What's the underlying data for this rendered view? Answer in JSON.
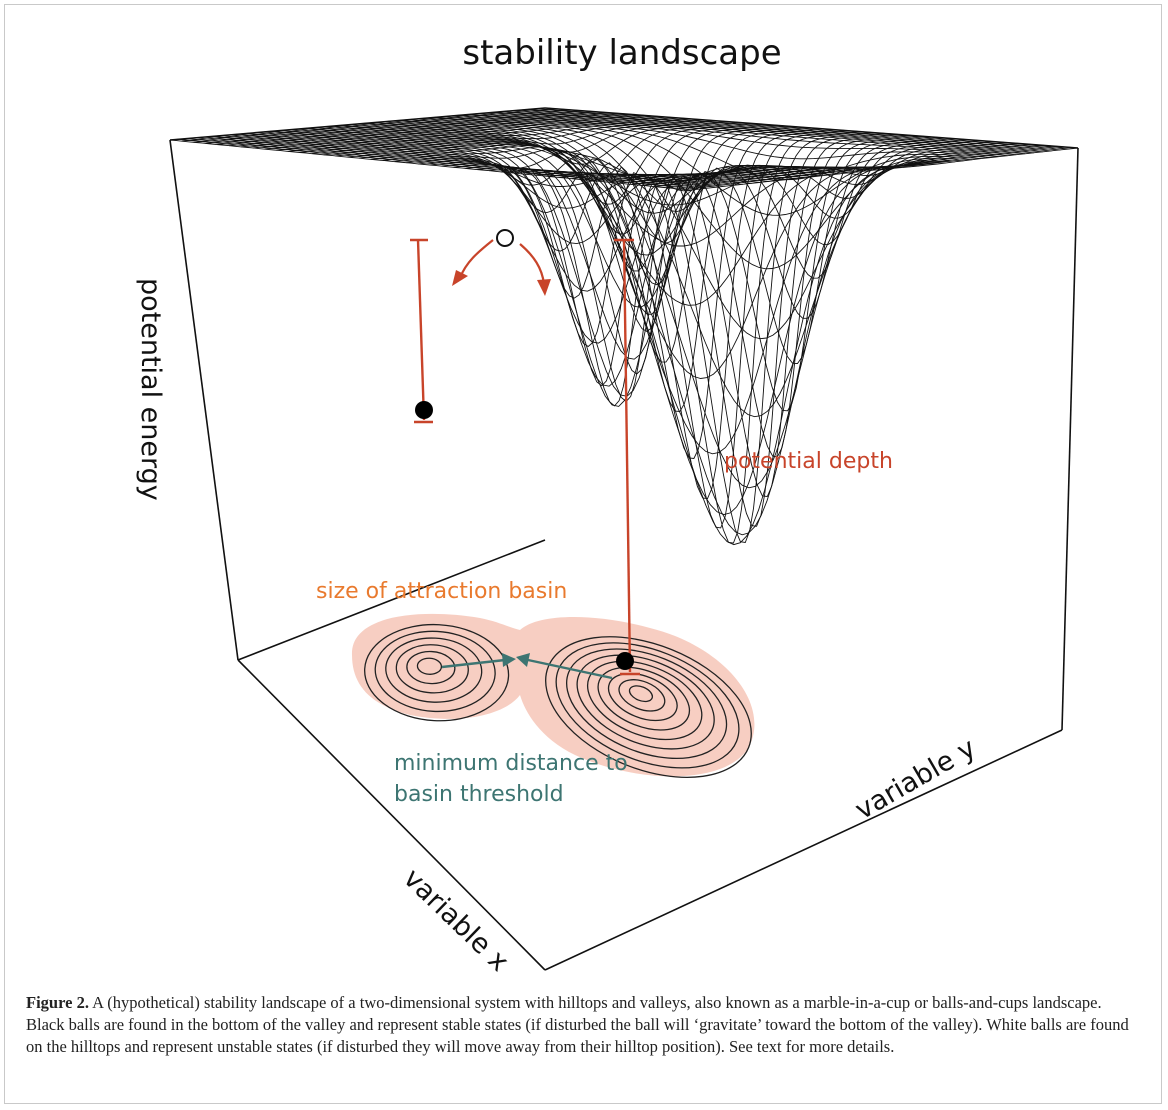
{
  "figure": {
    "title": "stability landscape",
    "axis_labels": {
      "z": "potential energy",
      "x": "variable x",
      "y": "variable y"
    },
    "annotations": {
      "depth": "potential depth",
      "basin_size": "size of attraction basin",
      "distance_line1": "minimum distance to",
      "distance_line2": "basin threshold"
    },
    "colors": {
      "depth": "#c8442a",
      "basin_size": "#e97a2e",
      "distance": "#3d7572",
      "basin_fill": "#f6c9bb",
      "stable_ball": "#000000",
      "unstable_ball": "#ffffff"
    }
  },
  "caption": {
    "label": "Figure 2.",
    "text": " A (hypothetical) stability landscape of a two-dimensional system with hilltops and valleys, also known as a marble-in-a-cup or balls-and-cups landscape. Black balls are found in the bottom of the valley and represent stable states (if disturbed the ball will ‘gravitate’ toward the bottom of the valley). White balls are found on the hilltops and represent unstable states (if disturbed they will move away from their hilltop position). See text for more details."
  }
}
